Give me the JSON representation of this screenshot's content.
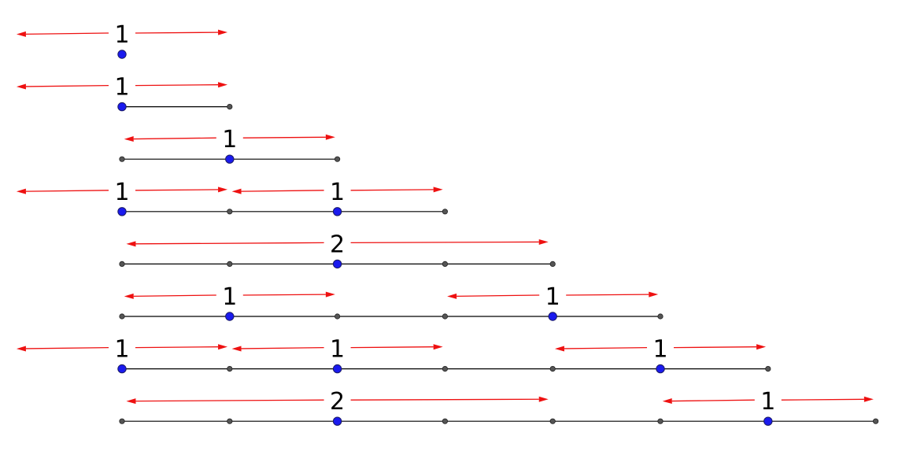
{
  "colors": {
    "arrow": "#ee1111",
    "segment": "#000000",
    "small_node": "#555555",
    "marked_node": "#1a1aee"
  },
  "rows": [
    {
      "segments": [],
      "nodes": [],
      "marked": [
        0
      ],
      "labels": [
        {
          "text": "1",
          "anchor": 0,
          "reach_left": 4.9,
          "reach_right": 4.9
        }
      ]
    },
    {
      "segments": [
        [
          0,
          1
        ]
      ],
      "nodes": [
        1
      ],
      "marked": [
        0
      ],
      "labels": [
        {
          "text": "1",
          "anchor": 0,
          "reach_left": 4.9,
          "reach_right": 4.9
        }
      ]
    },
    {
      "segments": [
        [
          0,
          2
        ]
      ],
      "nodes": [
        0,
        2
      ],
      "marked": [
        1
      ],
      "labels": [
        {
          "text": "1",
          "anchor": 1,
          "reach_left": 4.9,
          "reach_right": 4.9
        }
      ]
    },
    {
      "segments": [
        [
          0,
          3
        ]
      ],
      "nodes": [
        1,
        3
      ],
      "marked": [
        0,
        2
      ],
      "labels": [
        {
          "text": "1",
          "anchor": 0,
          "reach_left": 4.9,
          "reach_right": 4.9
        },
        {
          "text": "1",
          "anchor": 2,
          "reach_left": 4.9,
          "reach_right": 4.9
        }
      ]
    },
    {
      "segments": [
        [
          0,
          4
        ]
      ],
      "nodes": [
        0,
        1,
        3,
        4
      ],
      "marked": [
        2
      ],
      "labels": [
        {
          "text": "2",
          "anchor": 2,
          "reach_left": 9.8,
          "reach_right": 9.8
        }
      ]
    },
    {
      "segments": [
        [
          0,
          5
        ]
      ],
      "nodes": [
        0,
        2,
        3,
        5
      ],
      "marked": [
        1,
        4
      ],
      "labels": [
        {
          "text": "1",
          "anchor": 1,
          "reach_left": 4.9,
          "reach_right": 4.9
        },
        {
          "text": "1",
          "anchor": 4,
          "reach_left": 4.9,
          "reach_right": 4.9
        }
      ]
    },
    {
      "segments": [
        [
          0,
          6
        ]
      ],
      "nodes": [
        1,
        3,
        4,
        6
      ],
      "marked": [
        0,
        2,
        5
      ],
      "labels": [
        {
          "text": "1",
          "anchor": 0,
          "reach_left": 4.9,
          "reach_right": 4.9
        },
        {
          "text": "1",
          "anchor": 2,
          "reach_left": 4.9,
          "reach_right": 4.9
        },
        {
          "text": "1",
          "anchor": 5,
          "reach_left": 4.9,
          "reach_right": 4.9
        }
      ]
    },
    {
      "segments": [
        [
          0,
          7
        ]
      ],
      "nodes": [
        0,
        1,
        3,
        4,
        5,
        7
      ],
      "marked": [
        2,
        6
      ],
      "labels": [
        {
          "text": "2",
          "anchor": 2,
          "reach_left": 9.8,
          "reach_right": 9.8
        },
        {
          "text": "1",
          "anchor": 6,
          "reach_left": 4.9,
          "reach_right": 4.9
        }
      ]
    }
  ]
}
